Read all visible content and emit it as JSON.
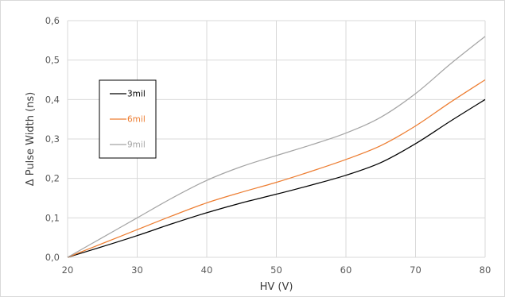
{
  "chart_data": {
    "type": "line",
    "title": "",
    "xlabel": "HV (V)",
    "ylabel": "Δ Pulse Width (ns)",
    "xlim": [
      20,
      80
    ],
    "ylim": [
      0,
      0.6
    ],
    "x_ticks": [
      20,
      30,
      40,
      50,
      60,
      70,
      80
    ],
    "y_ticks": [
      0,
      0.1,
      0.2,
      0.3,
      0.4,
      0.5,
      0.6
    ],
    "x_tick_labels": [
      "20",
      "30",
      "40",
      "50",
      "60",
      "70",
      "80"
    ],
    "y_tick_labels": [
      "0,0",
      "0,1",
      "0,2",
      "0,3",
      "0,4",
      "0,5",
      "0,6"
    ],
    "grid": true,
    "legend_position": "upper-left inside plot",
    "series": [
      {
        "name": "3mil",
        "color": "#000000",
        "x": [
          20,
          25,
          30,
          35,
          40,
          45,
          50,
          55,
          60,
          65,
          70,
          75,
          80
        ],
        "y": [
          0,
          0.027,
          0.055,
          0.085,
          0.113,
          0.138,
          0.16,
          0.183,
          0.208,
          0.24,
          0.288,
          0.345,
          0.4
        ]
      },
      {
        "name": "6mil",
        "color": "#ed7d31",
        "x": [
          20,
          25,
          30,
          35,
          40,
          45,
          50,
          55,
          60,
          65,
          70,
          75,
          80
        ],
        "y": [
          0,
          0.035,
          0.07,
          0.105,
          0.138,
          0.165,
          0.19,
          0.218,
          0.248,
          0.283,
          0.333,
          0.393,
          0.45
        ]
      },
      {
        "name": "9mil",
        "color": "#a5a5a5",
        "x": [
          20,
          25,
          30,
          35,
          40,
          45,
          50,
          55,
          60,
          65,
          70,
          75,
          80
        ],
        "y": [
          0,
          0.05,
          0.1,
          0.15,
          0.195,
          0.23,
          0.258,
          0.285,
          0.315,
          0.355,
          0.415,
          0.49,
          0.56
        ]
      }
    ]
  }
}
